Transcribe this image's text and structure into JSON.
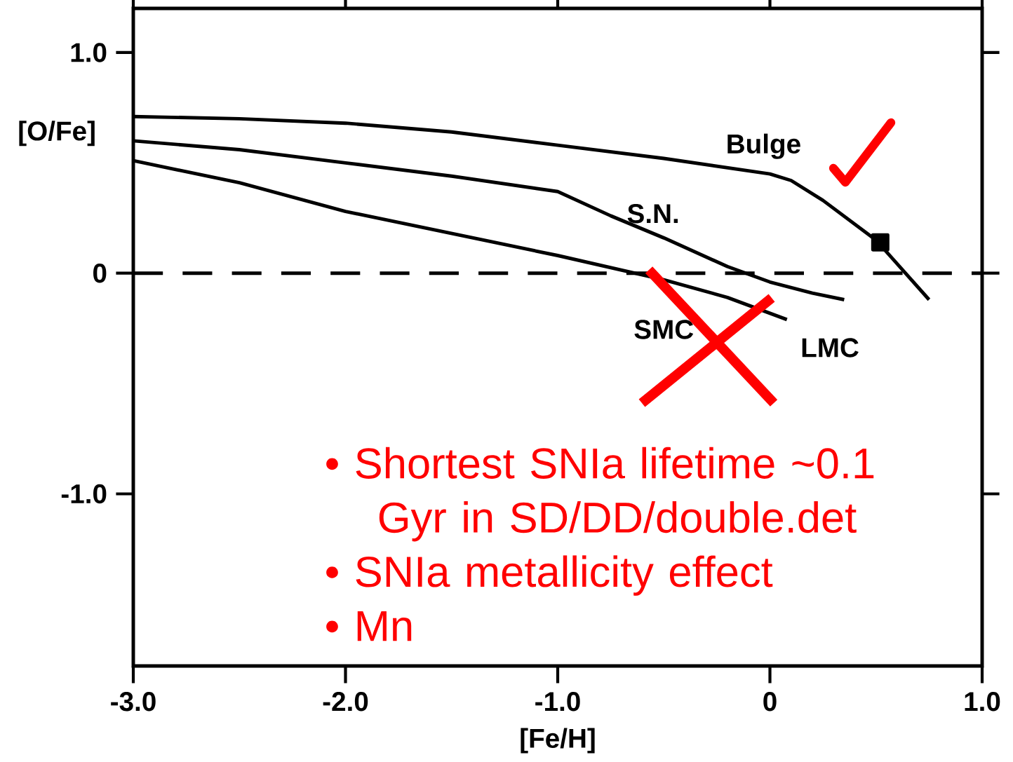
{
  "chart_data": {
    "type": "line",
    "xlabel": "[Fe/H]",
    "ylabel": "[O/Fe]",
    "xlim": [
      -3.0,
      1.0
    ],
    "ylim": [
      -1.78,
      1.2
    ],
    "xticks": [
      {
        "value": -3,
        "label": "-3.0"
      },
      {
        "value": -2,
        "label": "-2.0"
      },
      {
        "value": -1,
        "label": "-1.0"
      },
      0,
      {
        "value": 1,
        "label": "1.0"
      }
    ],
    "yticks": [
      {
        "value": -1,
        "label": "-1.0"
      },
      0,
      {
        "value": 1,
        "label": "1.0"
      }
    ],
    "series": [
      {
        "name": "Bulge",
        "color": "#000000",
        "x": [
          -3.0,
          -2.5,
          -2.0,
          -1.5,
          -1.0,
          -0.5,
          0.0,
          0.1,
          0.25,
          0.5,
          0.75
        ],
        "values": [
          0.71,
          0.7,
          0.68,
          0.64,
          0.58,
          0.52,
          0.45,
          0.42,
          0.33,
          0.15,
          -0.12
        ]
      },
      {
        "name": "S.N.",
        "color": "#000000",
        "x": [
          -3.0,
          -2.5,
          -2.0,
          -1.5,
          -1.0,
          -0.75,
          -0.5,
          -0.2,
          0.0,
          0.2,
          0.35
        ],
        "values": [
          0.6,
          0.56,
          0.5,
          0.44,
          0.37,
          0.26,
          0.16,
          0.03,
          -0.04,
          -0.09,
          -0.12
        ]
      },
      {
        "name": "SMC",
        "color": "#000000",
        "x": [
          -3.0,
          -2.5,
          -2.0,
          -1.5,
          -1.0,
          -0.5,
          -0.2,
          0.08
        ],
        "values": [
          0.51,
          0.41,
          0.28,
          0.18,
          0.08,
          -0.03,
          -0.11,
          -0.21
        ]
      },
      {
        "type": "scatter",
        "marker": "square",
        "color": "#000000",
        "x": [
          0.52
        ],
        "values": [
          0.14
        ]
      }
    ],
    "ref_lines": [
      {
        "axis": "y",
        "value": 0,
        "line_style": "dashed",
        "color": "#000000"
      }
    ],
    "annotations": [
      {
        "text": "LMC",
        "x": 0.08,
        "y": -0.21
      },
      "• Shortest SNIa lifetime ~0.1 Gyr in SD/DD/double.det",
      "• SNIa metallicity effect",
      "• Mn"
    ],
    "legend": false,
    "line_style": "solid"
  }
}
